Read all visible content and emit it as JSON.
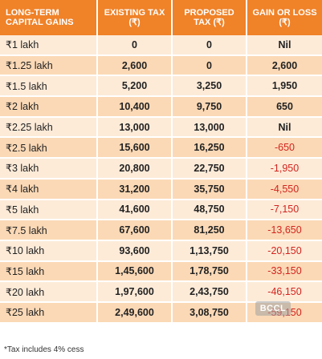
{
  "table": {
    "headers": [
      "LONG-TERM CAPITAL GAINS",
      "EXISTING TAX (₹)",
      "PROPOSED TAX (₹)",
      "GAIN OR LOSS (₹)"
    ],
    "rows": [
      {
        "gains": "₹1 lakh",
        "existing": "0",
        "proposed": "0",
        "diff": "Nil"
      },
      {
        "gains": "₹1.25 lakh",
        "existing": "2,600",
        "proposed": "0",
        "diff": "2,600"
      },
      {
        "gains": "₹1.5 lakh",
        "existing": "5,200",
        "proposed": "3,250",
        "diff": "1,950"
      },
      {
        "gains": "₹2 lakh",
        "existing": "10,400",
        "proposed": "9,750",
        "diff": "650"
      },
      {
        "gains": "₹2.25 lakh",
        "existing": "13,000",
        "proposed": "13,000",
        "diff": "Nil"
      },
      {
        "gains": "₹2.5 lakh",
        "existing": "15,600",
        "proposed": "16,250",
        "diff": "-650"
      },
      {
        "gains": "₹3 lakh",
        "existing": "20,800",
        "proposed": "22,750",
        "diff": "-1,950"
      },
      {
        "gains": "₹4 lakh",
        "existing": "31,200",
        "proposed": "35,750",
        "diff": "-4,550"
      },
      {
        "gains": "₹5 lakh",
        "existing": "41,600",
        "proposed": "48,750",
        "diff": "-7,150"
      },
      {
        "gains": "₹7.5 lakh",
        "existing": "67,600",
        "proposed": "81,250",
        "diff": "-13,650"
      },
      {
        "gains": "₹10 lakh",
        "existing": "93,600",
        "proposed": "1,13,750",
        "diff": "-20,150"
      },
      {
        "gains": "₹15 lakh",
        "existing": "1,45,600",
        "proposed": "1,78,750",
        "diff": "-33,150"
      },
      {
        "gains": "₹20 lakh",
        "existing": "1,97,600",
        "proposed": "2,43,750",
        "diff": "-46,150"
      },
      {
        "gains": "₹25 lakh",
        "existing": "2,49,600",
        "proposed": "3,08,750",
        "diff": "-59,150"
      }
    ]
  },
  "footnote": "*Tax includes 4% cess",
  "watermark": "BCCL",
  "colors": {
    "header_bg": "#f08228",
    "row_light": "#fdebd8",
    "row_dark": "#fbd9b6",
    "loss_text": "#d3241f"
  }
}
